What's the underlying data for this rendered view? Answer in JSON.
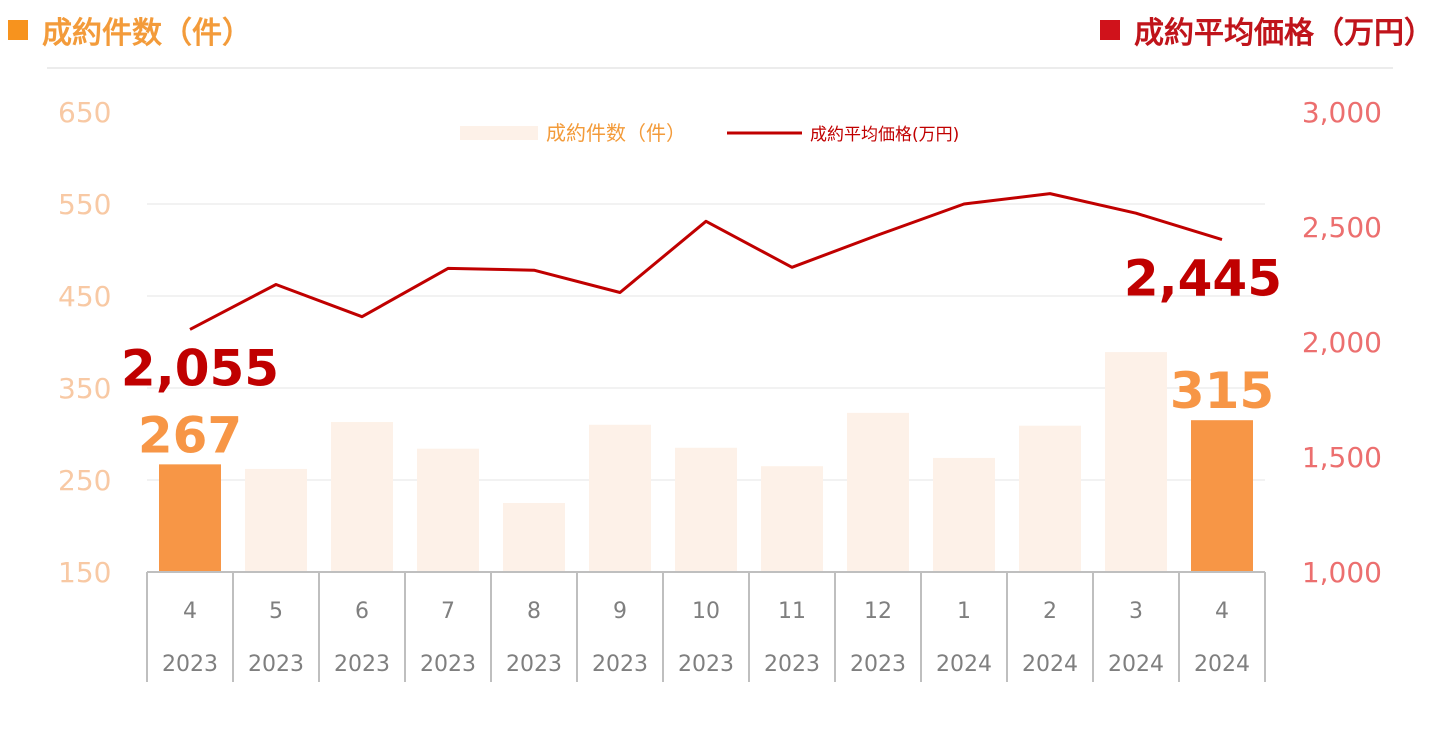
{
  "headers": {
    "left": "成約件数（件）",
    "right": "成約平均価格（万円）",
    "left_color": "#f7931e",
    "right_color": "#d0121b"
  },
  "chart_data": {
    "type": "bar",
    "categories": [
      {
        "month": "4",
        "year": "2023"
      },
      {
        "month": "5",
        "year": "2023"
      },
      {
        "month": "6",
        "year": "2023"
      },
      {
        "month": "7",
        "year": "2023"
      },
      {
        "month": "8",
        "year": "2023"
      },
      {
        "month": "9",
        "year": "2023"
      },
      {
        "month": "10",
        "year": "2023"
      },
      {
        "month": "11",
        "year": "2023"
      },
      {
        "month": "12",
        "year": "2023"
      },
      {
        "month": "1",
        "year": "2024"
      },
      {
        "month": "2",
        "year": "2024"
      },
      {
        "month": "3",
        "year": "2024"
      },
      {
        "month": "4",
        "year": "2024"
      }
    ],
    "series": [
      {
        "name": "成約件数（件）",
        "type": "bar",
        "axis": "left",
        "values": [
          267,
          262,
          313,
          284,
          225,
          310,
          285,
          265,
          323,
          274,
          309,
          389,
          315
        ],
        "color": "#fdf1e8",
        "highlight_color": "#f79646",
        "highlight_indices": [
          0,
          12
        ]
      },
      {
        "name": "成約平均価格(万円)",
        "type": "line",
        "axis": "right",
        "values": [
          2055,
          2250,
          2110,
          2320,
          2312,
          2215,
          2525,
          2325,
          2465,
          2600,
          2645,
          2560,
          2445
        ],
        "color": "#c00000"
      }
    ],
    "y_left": {
      "min": 150,
      "max": 650,
      "ticks": [
        "650",
        "550",
        "450",
        "350",
        "250",
        "150"
      ],
      "color": "#f8c9a4"
    },
    "y_right": {
      "min": 1000,
      "max": 3000,
      "ticks": [
        "3,000",
        "2,500",
        "2,000",
        "1,500",
        "1,000"
      ],
      "color": "#ec6f6f"
    },
    "annotations": [
      {
        "text": "267",
        "series": 0,
        "index": 0,
        "color": "#f79646"
      },
      {
        "text": "315",
        "series": 0,
        "index": 12,
        "color": "#f79646"
      },
      {
        "text": "2,055",
        "series": 1,
        "index": 0,
        "color": "#c00000"
      },
      {
        "text": "2,445",
        "series": 1,
        "index": 12,
        "color": "#c00000"
      }
    ],
    "grid": true,
    "legend": "top-center"
  }
}
